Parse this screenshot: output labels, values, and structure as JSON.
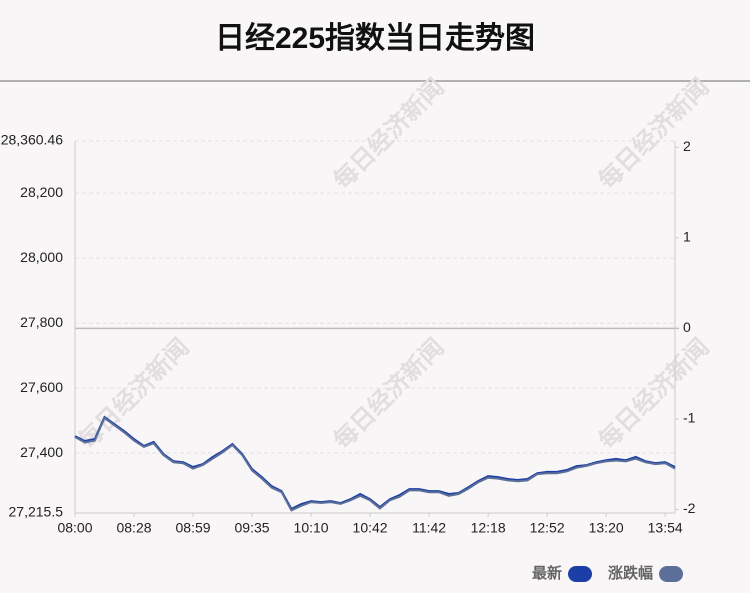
{
  "chart_data": {
    "type": "line",
    "title": "日经225指数当日走势图",
    "watermark": "每日经济新闻",
    "categories": [
      "08:00",
      null,
      null,
      null,
      null,
      null,
      "08:28",
      null,
      null,
      null,
      null,
      null,
      "08:59",
      null,
      null,
      null,
      null,
      null,
      "09:35",
      null,
      null,
      null,
      null,
      null,
      "10:10",
      null,
      null,
      null,
      null,
      null,
      "10:42",
      null,
      null,
      null,
      null,
      null,
      "11:42",
      null,
      null,
      null,
      null,
      null,
      "12:18",
      null,
      null,
      null,
      null,
      null,
      "12:52",
      null,
      null,
      null,
      null,
      null,
      "13:20",
      null,
      null,
      null,
      null,
      null,
      "13:54",
      null
    ],
    "series": [
      {
        "name": "最新",
        "color": "#1b3fa6",
        "values": [
          27452,
          27437,
          27443,
          27511,
          27489,
          27468,
          27443,
          27422,
          27434,
          27397,
          27375,
          27372,
          27357,
          27366,
          27388,
          27406,
          27428,
          27397,
          27351,
          27326,
          27298,
          27283,
          27228,
          27243,
          27252,
          27249,
          27252,
          27246,
          27258,
          27274,
          27258,
          27234,
          27258,
          27271,
          27289,
          27289,
          27283,
          27283,
          27274,
          27277,
          27295,
          27314,
          27329,
          27326,
          27320,
          27317,
          27320,
          27338,
          27342,
          27342,
          27348,
          27360,
          27363,
          27372,
          27378,
          27382,
          27378,
          27388,
          27375,
          27369,
          27372,
          27357
        ]
      },
      {
        "name": "涨跌幅",
        "color": "#5b6f98",
        "axis": "y2",
        "values": [
          -1.2,
          -1.26,
          -1.24,
          -0.99,
          -1.07,
          -1.15,
          -1.24,
          -1.31,
          -1.27,
          -1.4,
          -1.48,
          -1.49,
          -1.55,
          -1.51,
          -1.44,
          -1.37,
          -1.29,
          -1.4,
          -1.57,
          -1.66,
          -1.76,
          -1.81,
          -2.01,
          -1.96,
          -1.92,
          -1.93,
          -1.92,
          -1.94,
          -1.9,
          -1.85,
          -1.9,
          -1.99,
          -1.9,
          -1.86,
          -1.79,
          -1.79,
          -1.81,
          -1.81,
          -1.85,
          -1.83,
          -1.77,
          -1.7,
          -1.65,
          -1.66,
          -1.68,
          -1.69,
          -1.68,
          -1.61,
          -1.6,
          -1.6,
          -1.58,
          -1.54,
          -1.52,
          -1.49,
          -1.47,
          -1.46,
          -1.47,
          -1.44,
          -1.48,
          -1.5,
          -1.49,
          -1.55
        ]
      }
    ],
    "ylim": [
      27215.5,
      28360.46
    ],
    "yticks": [
      {
        "value": 28360.46,
        "label": "28,360.46"
      },
      {
        "value": 28200,
        "label": "28,200"
      },
      {
        "value": 28000,
        "label": "28,000"
      },
      {
        "value": 27800,
        "label": "27,800"
      },
      {
        "value": 27600,
        "label": "27,600"
      },
      {
        "value": 27400,
        "label": "27,400"
      },
      {
        "value": 27215.5,
        "label": "27,215.5"
      }
    ],
    "y2lim": [
      -2.04,
      2.07
    ],
    "y2ticks": [
      2,
      1,
      0,
      -1,
      -2
    ],
    "grid": true
  }
}
